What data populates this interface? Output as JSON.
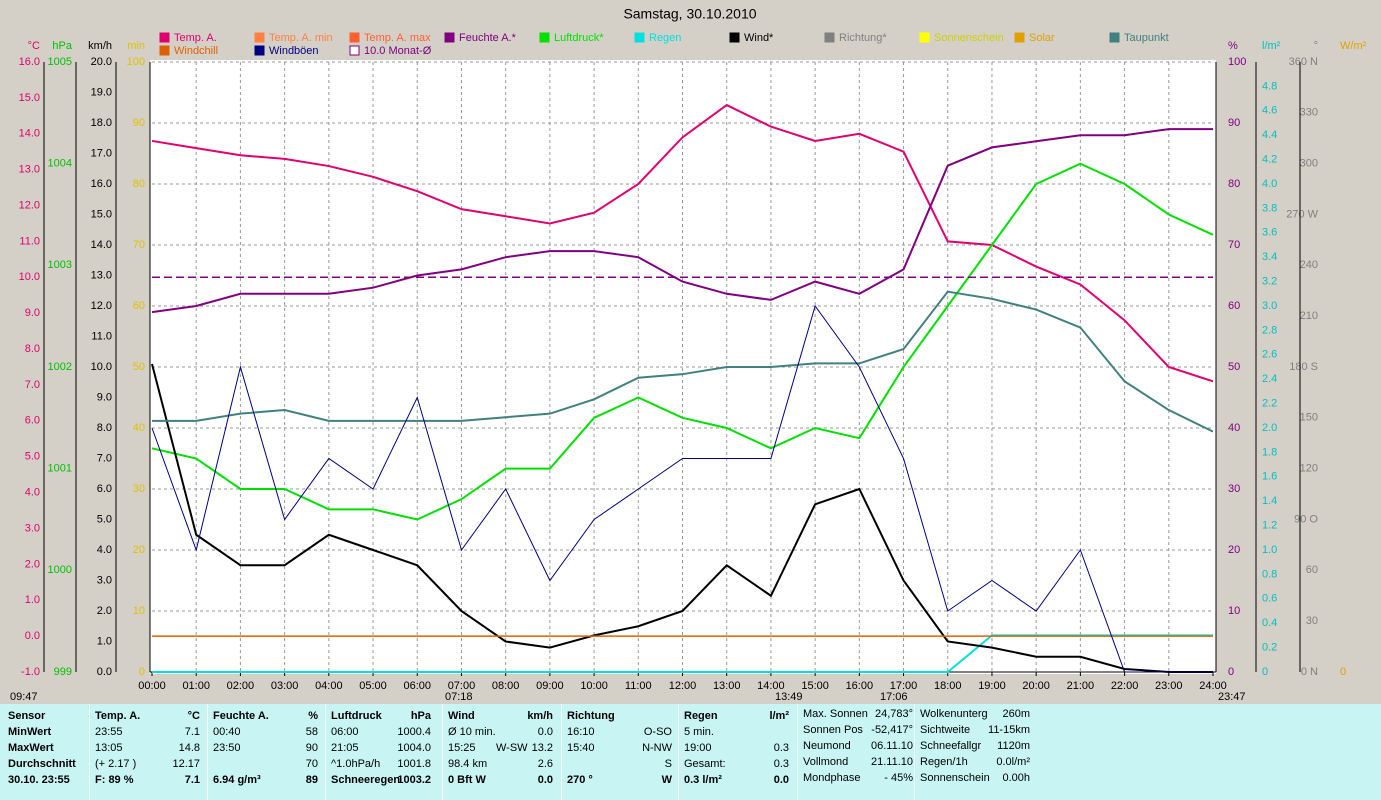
{
  "chart_data": {
    "type": "line",
    "title": "Samstag, 30.10.2010",
    "categories": [
      "00:00",
      "01:00",
      "02:00",
      "03:00",
      "04:00",
      "05:00",
      "06:00",
      "07:00",
      "08:00",
      "09:00",
      "10:00",
      "11:00",
      "12:00",
      "13:00",
      "14:00",
      "15:00",
      "16:00",
      "17:00",
      "18:00",
      "19:00",
      "20:00",
      "21:00",
      "22:00",
      "23:00",
      "24:00"
    ],
    "axes": [
      {
        "unit": "°C",
        "color": "#e0006f",
        "lim": [
          -1,
          16
        ],
        "ticks": [
          {
            "value": -1,
            "label": "-1.0"
          },
          {
            "value": 0,
            "label": "0.0"
          },
          {
            "value": 1,
            "label": "1.0"
          },
          {
            "value": 2,
            "label": "2.0"
          },
          {
            "value": 3,
            "label": "3.0"
          },
          {
            "value": 4,
            "label": "4.0"
          },
          {
            "value": 5,
            "label": "5.0"
          },
          {
            "value": 6,
            "label": "6.0"
          },
          {
            "value": 7,
            "label": "7.0"
          },
          {
            "value": 8,
            "label": "8.0"
          },
          {
            "value": 9,
            "label": "9.0"
          },
          {
            "value": 10,
            "label": "10.0"
          },
          {
            "value": 11,
            "label": "11.0"
          },
          {
            "value": 12,
            "label": "12.0"
          },
          {
            "value": 13,
            "label": "13.0"
          },
          {
            "value": 14,
            "label": "14.0"
          },
          {
            "value": 15,
            "label": "15.0"
          },
          {
            "value": 16,
            "label": "16.0"
          }
        ]
      },
      {
        "unit": "hPa",
        "color": "#00c000",
        "lim": [
          999,
          1005
        ],
        "ticks": [
          999,
          1000,
          1001,
          1002,
          1003,
          1004,
          1005
        ]
      },
      {
        "unit": "km/h",
        "color": "#000000",
        "lim": [
          0,
          20
        ],
        "ticks": [
          {
            "value": 0,
            "label": "0.0"
          },
          {
            "value": 1,
            "label": "1.0"
          },
          {
            "value": 2,
            "label": "2.0"
          },
          {
            "value": 3,
            "label": "3.0"
          },
          {
            "value": 4,
            "label": "4.0"
          },
          {
            "value": 5,
            "label": "5.0"
          },
          {
            "value": 6,
            "label": "6.0"
          },
          {
            "value": 7,
            "label": "7.0"
          },
          {
            "value": 8,
            "label": "8.0"
          },
          {
            "value": 9,
            "label": "9.0"
          },
          {
            "value": 10,
            "label": "10.0"
          },
          {
            "value": 11,
            "label": "11.0"
          },
          {
            "value": 12,
            "label": "12.0"
          },
          {
            "value": 13,
            "label": "13.0"
          },
          {
            "value": 14,
            "label": "14.0"
          },
          {
            "value": 15,
            "label": "15.0"
          },
          {
            "value": 16,
            "label": "16.0"
          },
          {
            "value": 17,
            "label": "17.0"
          },
          {
            "value": 18,
            "label": "18.0"
          },
          {
            "value": 19,
            "label": "19.0"
          },
          {
            "value": 20,
            "label": "20.0"
          }
        ]
      },
      {
        "unit": "min",
        "color": "#e0c000",
        "lim": [
          0,
          100
        ],
        "ticks": [
          0,
          10,
          20,
          30,
          40,
          50,
          60,
          70,
          80,
          90,
          100
        ]
      },
      {
        "unit": "%",
        "color": "#800080",
        "lim": [
          0,
          100
        ],
        "ticks": [
          0,
          10,
          20,
          30,
          40,
          50,
          60,
          70,
          80,
          90,
          100
        ]
      },
      {
        "unit": "l/m²",
        "color": "#00c0c0",
        "lim": [
          0,
          5
        ],
        "ticks": [
          0,
          0.2,
          0.4,
          0.6,
          0.8,
          {
            "value": 1,
            "label": "1.0"
          },
          1.2,
          1.4,
          1.6,
          1.8,
          {
            "value": 2,
            "label": "2.0"
          },
          2.2,
          2.4,
          2.6,
          2.8,
          {
            "value": 3,
            "label": "3.0"
          },
          3.2,
          3.4,
          3.6,
          3.8,
          {
            "value": 4,
            "label": "4.0"
          },
          4.2,
          4.4,
          4.6,
          4.8
        ]
      },
      {
        "unit": "°",
        "color": "#808080",
        "lim": [
          0,
          360
        ],
        "ticks": [
          {
            "value": 0,
            "label": "0 N"
          },
          30,
          60,
          {
            "value": 90,
            "label": "90 O"
          },
          120,
          150,
          {
            "value": 180,
            "label": "180 S"
          },
          210,
          240,
          {
            "value": 270,
            "label": "270 W"
          },
          300,
          330,
          {
            "value": 360,
            "label": "360 N"
          }
        ]
      },
      {
        "unit": "W/m²",
        "color": "#e0a000",
        "lim": [
          0,
          1
        ],
        "ticks": [
          0
        ]
      }
    ],
    "series": [
      {
        "name": "Temp. A.",
        "color": "#e0006f",
        "axis": "°C",
        "values": [
          13.8,
          13.6,
          13.4,
          13.3,
          13.1,
          12.8,
          12.4,
          11.9,
          11.7,
          11.5,
          11.8,
          12.6,
          13.9,
          14.8,
          14.2,
          13.8,
          14.0,
          13.5,
          11.0,
          10.9,
          10.3,
          9.8,
          8.8,
          7.5,
          7.1
        ]
      },
      {
        "name": "Temp. A. min",
        "color": "#ff8040"
      },
      {
        "name": "Temp. A. max",
        "color": "#ff6030"
      },
      {
        "name": "Feuchte A.*",
        "color": "#800080",
        "axis": "%",
        "values": [
          59,
          60,
          62,
          62,
          62,
          63,
          65,
          66,
          68,
          69,
          69,
          68,
          64,
          62,
          61,
          64,
          62,
          66,
          83,
          86,
          87,
          88,
          88,
          89,
          89
        ]
      },
      {
        "name": "Luftdruck*",
        "color": "#00e000",
        "axis": "hPa",
        "values": [
          1001.2,
          1001.1,
          1000.8,
          1000.8,
          1000.6,
          1000.6,
          1000.5,
          1000.7,
          1001.0,
          1001.0,
          1001.5,
          1001.7,
          1001.5,
          1001.4,
          1001.2,
          1001.4,
          1001.3,
          1002.0,
          1002.6,
          1003.2,
          1003.8,
          1004.0,
          1003.8,
          1003.5,
          1003.3
        ]
      },
      {
        "name": "Regen",
        "color": "#00e0e0",
        "axis": "l/m²",
        "values": [
          0,
          0,
          0,
          0,
          0,
          0,
          0,
          0,
          0,
          0,
          0,
          0,
          0,
          0,
          0,
          0,
          0,
          0,
          0,
          0.3,
          0.3,
          0.3,
          0.3,
          0.3,
          0.3
        ]
      },
      {
        "name": "Wind*",
        "color": "#000000",
        "axis": "km/h",
        "values": [
          10.1,
          4.5,
          3.5,
          3.5,
          4.5,
          4.0,
          3.5,
          2.0,
          1.0,
          0.8,
          1.2,
          1.5,
          2.0,
          3.5,
          2.5,
          5.5,
          6.0,
          3.0,
          1.0,
          0.8,
          0.5,
          0.5,
          0.1,
          0,
          0
        ]
      },
      {
        "name": "Richtung*",
        "color": "#808080"
      },
      {
        "name": "Sonnenschein",
        "color": "#ffff00"
      },
      {
        "name": "Solar",
        "color": "#e0a000"
      },
      {
        "name": "Taupunkt",
        "color": "#408080",
        "axis": "°C",
        "values": [
          6.0,
          6.0,
          6.2,
          6.3,
          6.0,
          6.0,
          6.0,
          6.0,
          6.1,
          6.2,
          6.6,
          7.2,
          7.3,
          7.5,
          7.5,
          7.6,
          7.6,
          8.0,
          9.6,
          9.4,
          9.1,
          8.6,
          7.1,
          6.3,
          5.7
        ]
      },
      {
        "name": "Windchill",
        "color": "#e06000",
        "axis": "°C",
        "hline": 0
      },
      {
        "name": "Windböen",
        "color": "#000080",
        "axis": "km/h",
        "values": [
          8,
          4,
          10,
          5,
          7,
          6,
          9,
          4,
          6,
          3,
          5,
          6,
          7,
          7,
          7,
          12,
          10,
          7,
          2,
          3,
          2,
          4,
          0,
          0,
          0
        ]
      },
      {
        "name": "10.0 Monat-Ø",
        "color": "#800080",
        "axis": "°C",
        "hline": 10,
        "dashed": true
      }
    ],
    "annotations": [
      "09:47",
      "07:18",
      "13:49",
      "17:06",
      "23:47"
    ]
  },
  "table": {
    "columns": [
      {
        "header": [
          {
            "l": "Sensor"
          }
        ],
        "rows": [
          {
            "l": "MinWert"
          },
          {
            "l": "MaxWert"
          },
          {
            "l": "Durchschnitt"
          },
          {
            "l": "30.10. 23:55"
          }
        ]
      },
      {
        "header": [
          {
            "l": "Temp. A.",
            "r": "°C"
          }
        ],
        "rows": [
          {
            "l": "23:55",
            "r": "7.1"
          },
          {
            "l": "13:05",
            "r": "14.8"
          },
          {
            "l": "(+ 2.17 )",
            "r": "12.17"
          },
          {
            "l": "F: 89 %",
            "r": "7.1"
          }
        ]
      },
      {
        "header": [
          {
            "l": "Feuchte A.",
            "r": "%"
          }
        ],
        "rows": [
          {
            "l": "00:40",
            "r": "58"
          },
          {
            "l": "23:50",
            "r": "90"
          },
          {
            "r": "70"
          },
          {
            "l": "6.94 g/m³",
            "r": "89"
          }
        ]
      },
      {
        "header": [
          {
            "l": "Luftdruck",
            "r": "hPa"
          }
        ],
        "rows": [
          {
            "l": "06:00",
            "r": "1000.4"
          },
          {
            "l": "21:05",
            "r": "1004.0"
          },
          {
            "l": "^1.0hPa/h",
            "r": "1001.8"
          },
          {
            "l": "Schneeregen",
            "r": "1003.2"
          }
        ]
      },
      {
        "header": [
          {
            "l": "Wind",
            "r": "km/h"
          }
        ],
        "rows": [
          {
            "l": "Ø 10 min.",
            "r": "0.0"
          },
          {
            "l": "15:25",
            "m": "W-SW",
            "r": "13.2"
          },
          {
            "l": "98.4 km",
            "r": "2.6"
          },
          {
            "l": "0 Bft W",
            "r": "0.0"
          }
        ]
      },
      {
        "header": [
          {
            "l": "Richtung"
          }
        ],
        "rows": [
          {
            "l": "16:10",
            "r": "O-SO"
          },
          {
            "l": "15:40",
            "r": "N-NW"
          },
          {
            "r": "S"
          },
          {
            "l": "270 °",
            "r": "W"
          }
        ]
      },
      {
        "header": [
          {
            "l": "Regen",
            "r": "l/m²"
          }
        ],
        "rows": [
          {
            "l": "5 min."
          },
          {
            "l": "19:00",
            "r": "0.3"
          },
          {
            "l": "Gesamt:",
            "r": "0.3"
          },
          {
            "l": "0.3 l/m²",
            "r": "0.0"
          }
        ]
      },
      {
        "rows": [
          {
            "l": "Max. Sonnen",
            "r": "24,783°"
          },
          {
            "l": "Sonnen Pos",
            "r": "-52,417°"
          },
          {
            "l": "Neumond",
            "r": "06.11.10"
          },
          {
            "l": "Vollmond",
            "r": "21.11.10"
          },
          {
            "l": "Mondphase",
            "r": "- 45%"
          }
        ]
      },
      {
        "rows": [
          {
            "l": "Wolkenunterg",
            "r": "260m"
          },
          {
            "l": "Sichtweite",
            "r": "11-15km"
          },
          {
            "l": "Schneefallgr",
            "r": "1120m"
          },
          {
            "l": "Regen/1h",
            "r": "0.0l/m²"
          },
          {
            "l": "Sonnenschein",
            "r": "0.00h"
          }
        ]
      }
    ]
  }
}
